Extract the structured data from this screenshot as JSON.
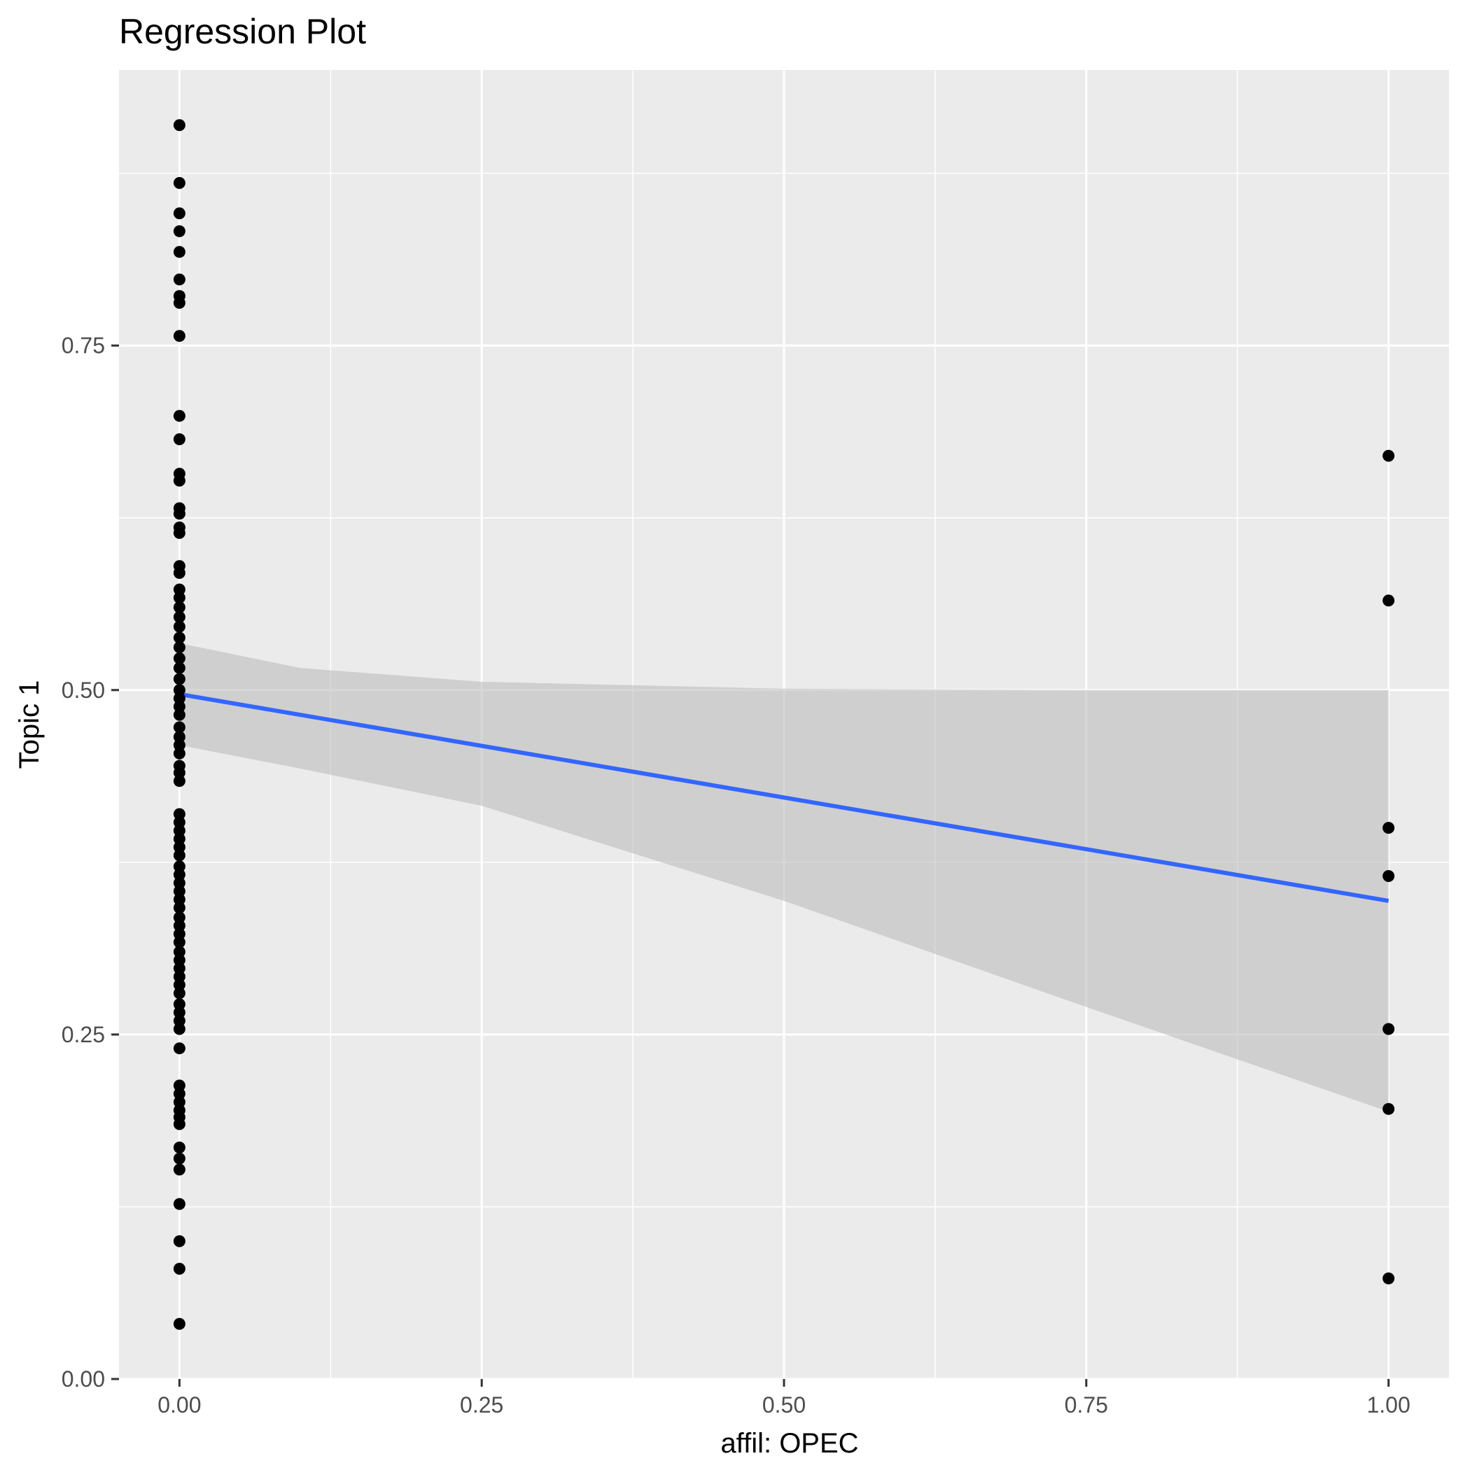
{
  "chart_data": {
    "type": "scatter",
    "title": "Regression Plot",
    "xlabel": "affil: OPEC",
    "ylabel": "Topic 1",
    "xlim": [
      -0.05,
      1.05
    ],
    "ylim": [
      0.0,
      0.95
    ],
    "x_ticks": [
      0.0,
      0.25,
      0.5,
      0.75,
      1.0
    ],
    "x_tick_labels": [
      "0.00",
      "0.25",
      "0.50",
      "0.75",
      "1.00"
    ],
    "y_ticks": [
      0.0,
      0.25,
      0.5,
      0.75
    ],
    "y_tick_labels": [
      "0.00",
      "0.25",
      "0.50",
      "0.75"
    ],
    "grid": true,
    "legend": "none",
    "series": [
      {
        "kind": "points",
        "color": "#000000",
        "points": [
          [
            0,
            0.91
          ],
          [
            0,
            0.868
          ],
          [
            0,
            0.846
          ],
          [
            0,
            0.833
          ],
          [
            0,
            0.818
          ],
          [
            0,
            0.798
          ],
          [
            0,
            0.786
          ],
          [
            0,
            0.781
          ],
          [
            0,
            0.757
          ],
          [
            0,
            0.699
          ],
          [
            0,
            0.682
          ],
          [
            0,
            0.657
          ],
          [
            0,
            0.652
          ],
          [
            0,
            0.632
          ],
          [
            0,
            0.628
          ],
          [
            0,
            0.618
          ],
          [
            0,
            0.614
          ],
          [
            0,
            0.59
          ],
          [
            0,
            0.585
          ],
          [
            0,
            0.573
          ],
          [
            0,
            0.567
          ],
          [
            0,
            0.56
          ],
          [
            0,
            0.553
          ],
          [
            0,
            0.546
          ],
          [
            0,
            0.538
          ],
          [
            0,
            0.531
          ],
          [
            0,
            0.523
          ],
          [
            0,
            0.516
          ],
          [
            0,
            0.508
          ],
          [
            0,
            0.5
          ],
          [
            0,
            0.494
          ],
          [
            0,
            0.488
          ],
          [
            0,
            0.482
          ],
          [
            0,
            0.473
          ],
          [
            0,
            0.466
          ],
          [
            0,
            0.46
          ],
          [
            0,
            0.454
          ],
          [
            0,
            0.445
          ],
          [
            0,
            0.44
          ],
          [
            0,
            0.434
          ],
          [
            0,
            0.41
          ],
          [
            0,
            0.404
          ],
          [
            0,
            0.398
          ],
          [
            0,
            0.392
          ],
          [
            0,
            0.386
          ],
          [
            0,
            0.38
          ],
          [
            0,
            0.372
          ],
          [
            0,
            0.366
          ],
          [
            0,
            0.36
          ],
          [
            0,
            0.354
          ],
          [
            0,
            0.348
          ],
          [
            0,
            0.342
          ],
          [
            0,
            0.335
          ],
          [
            0,
            0.329
          ],
          [
            0,
            0.323
          ],
          [
            0,
            0.317
          ],
          [
            0,
            0.31
          ],
          [
            0,
            0.304
          ],
          [
            0,
            0.298
          ],
          [
            0,
            0.292
          ],
          [
            0,
            0.286
          ],
          [
            0,
            0.28
          ],
          [
            0,
            0.272
          ],
          [
            0,
            0.266
          ],
          [
            0,
            0.26
          ],
          [
            0,
            0.254
          ],
          [
            0,
            0.24
          ],
          [
            0,
            0.213
          ],
          [
            0,
            0.207
          ],
          [
            0,
            0.201
          ],
          [
            0,
            0.195
          ],
          [
            0,
            0.19
          ],
          [
            0,
            0.185
          ],
          [
            0,
            0.168
          ],
          [
            0,
            0.16
          ],
          [
            0,
            0.152
          ],
          [
            0,
            0.127
          ],
          [
            0,
            0.1
          ],
          [
            0,
            0.08
          ],
          [
            0,
            0.04
          ],
          [
            1,
            0.67
          ],
          [
            1,
            0.565
          ],
          [
            1,
            0.4
          ],
          [
            1,
            0.365
          ],
          [
            1,
            0.254
          ],
          [
            1,
            0.196
          ],
          [
            1,
            0.073
          ]
        ]
      },
      {
        "kind": "regression_line",
        "color": "#3366ff",
        "x": [
          0,
          1
        ],
        "y": [
          0.497,
          0.347
        ]
      },
      {
        "kind": "confidence_band",
        "color": "#bdbdbd",
        "x": [
          0,
          0.1,
          0.25,
          0.5,
          0.75,
          1.0
        ],
        "upper": [
          0.534,
          0.516,
          0.506,
          0.501,
          0.5,
          0.5
        ],
        "lower": [
          0.46,
          0.443,
          0.416,
          0.347,
          0.27,
          0.194
        ]
      }
    ]
  }
}
